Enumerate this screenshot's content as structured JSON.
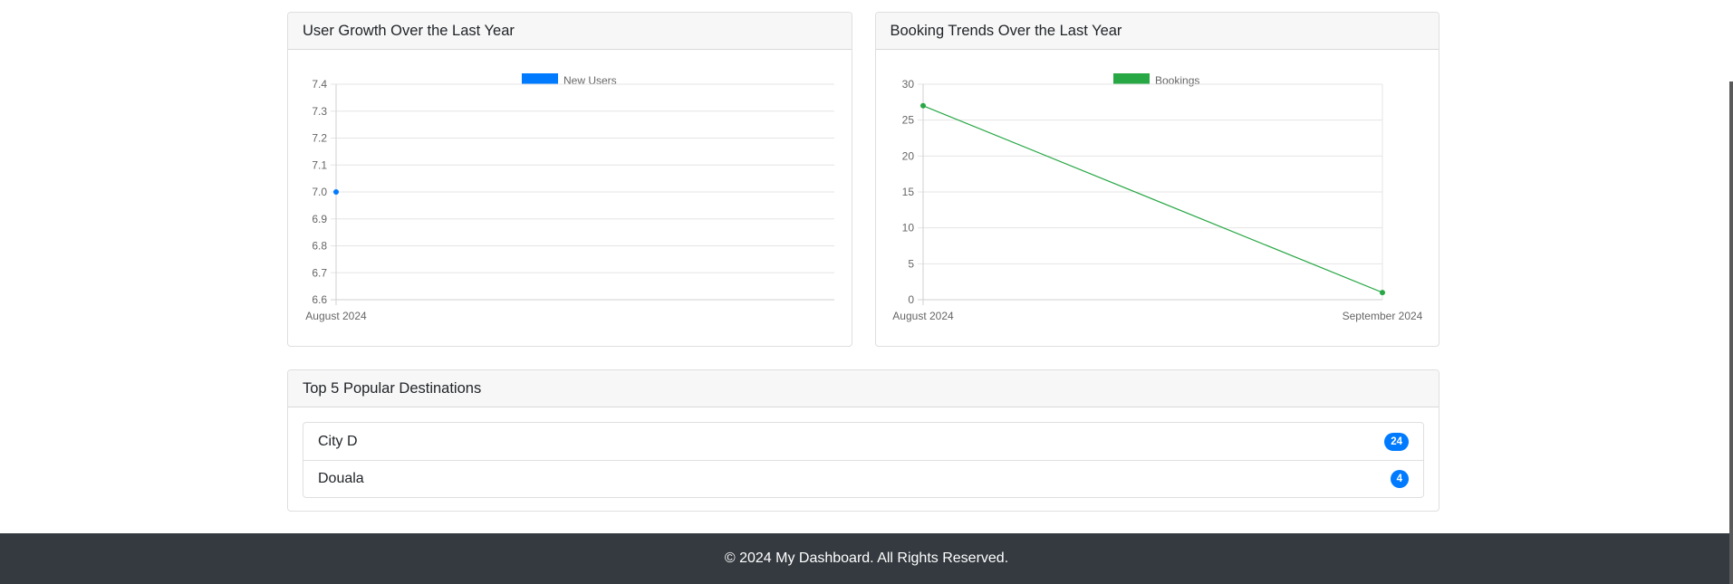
{
  "charts": [
    {
      "header": "User Growth Over the Last Year",
      "chart_data": {
        "type": "line",
        "categories": [
          "August 2024"
        ],
        "series": [
          {
            "name": "New Users",
            "values": [
              7
            ],
            "color": "#007bff"
          }
        ],
        "yticks": [
          "7.4",
          "7.3",
          "7.2",
          "7.1",
          "7.0",
          "6.9",
          "6.8",
          "6.7",
          "6.6"
        ],
        "ylim": [
          6.6,
          7.4
        ],
        "grid": true,
        "legend": "top"
      }
    },
    {
      "header": "Booking Trends Over the Last Year",
      "chart_data": {
        "type": "line",
        "categories": [
          "August 2024",
          "September 2024"
        ],
        "series": [
          {
            "name": "Bookings",
            "values": [
              27,
              1
            ],
            "color": "#28a745"
          }
        ],
        "yticks": [
          "30",
          "25",
          "20",
          "15",
          "10",
          "5",
          "0"
        ],
        "ylim": [
          0,
          30
        ],
        "grid": true,
        "legend": "top"
      }
    }
  ],
  "destinations": {
    "header": "Top 5 Popular Destinations",
    "items": [
      {
        "name": "City D",
        "count": "24"
      },
      {
        "name": "Douala",
        "count": "4"
      }
    ]
  },
  "footer": {
    "text": "© 2024 My Dashboard. All Rights Reserved."
  }
}
